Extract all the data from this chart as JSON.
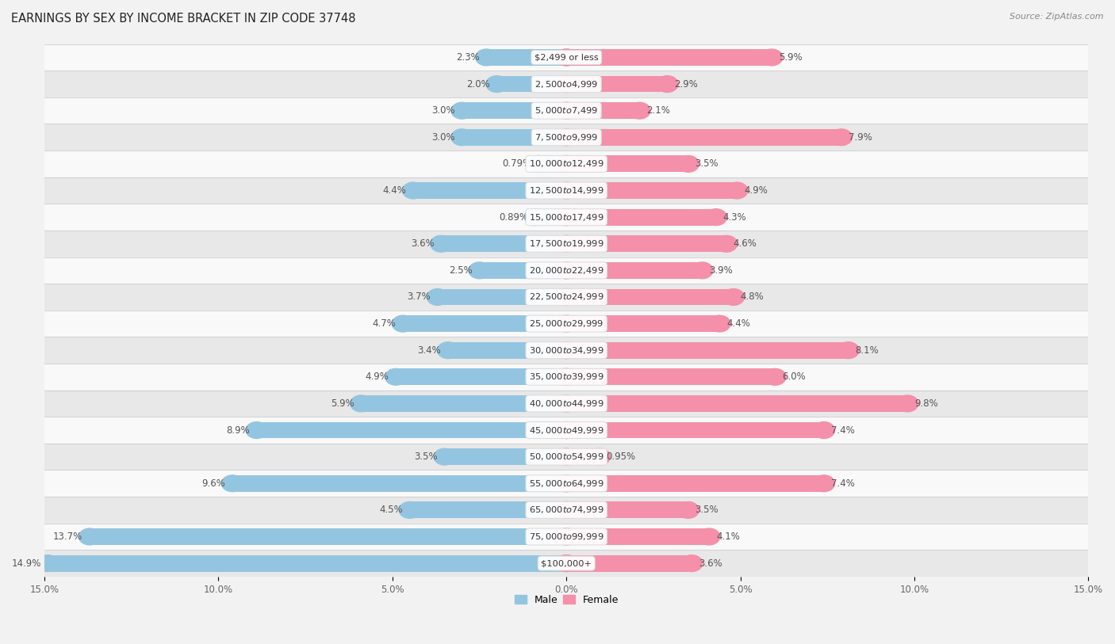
{
  "title": "EARNINGS BY SEX BY INCOME BRACKET IN ZIP CODE 37748",
  "source": "Source: ZipAtlas.com",
  "categories": [
    "$2,499 or less",
    "$2,500 to $4,999",
    "$5,000 to $7,499",
    "$7,500 to $9,999",
    "$10,000 to $12,499",
    "$12,500 to $14,999",
    "$15,000 to $17,499",
    "$17,500 to $19,999",
    "$20,000 to $22,499",
    "$22,500 to $24,999",
    "$25,000 to $29,999",
    "$30,000 to $34,999",
    "$35,000 to $39,999",
    "$40,000 to $44,999",
    "$45,000 to $49,999",
    "$50,000 to $54,999",
    "$55,000 to $64,999",
    "$65,000 to $74,999",
    "$75,000 to $99,999",
    "$100,000+"
  ],
  "male_values": [
    2.3,
    2.0,
    3.0,
    3.0,
    0.79,
    4.4,
    0.89,
    3.6,
    2.5,
    3.7,
    4.7,
    3.4,
    4.9,
    5.9,
    8.9,
    3.5,
    9.6,
    4.5,
    13.7,
    14.9
  ],
  "female_values": [
    5.9,
    2.9,
    2.1,
    7.9,
    3.5,
    4.9,
    4.3,
    4.6,
    3.9,
    4.8,
    4.4,
    8.1,
    6.0,
    9.8,
    7.4,
    0.95,
    7.4,
    3.5,
    4.1,
    3.6
  ],
  "male_color": "#94c5e0",
  "female_color": "#f490aa",
  "bar_height": 0.62,
  "xlim": 15.0,
  "background_color": "#f2f2f2",
  "row_color_odd": "#f9f9f9",
  "row_color_even": "#e8e8e8",
  "title_fontsize": 10.5,
  "label_fontsize": 8.5,
  "category_fontsize": 8.2,
  "tick_fontsize": 8.5,
  "label_color": "#555555",
  "category_label_color": "#333333"
}
